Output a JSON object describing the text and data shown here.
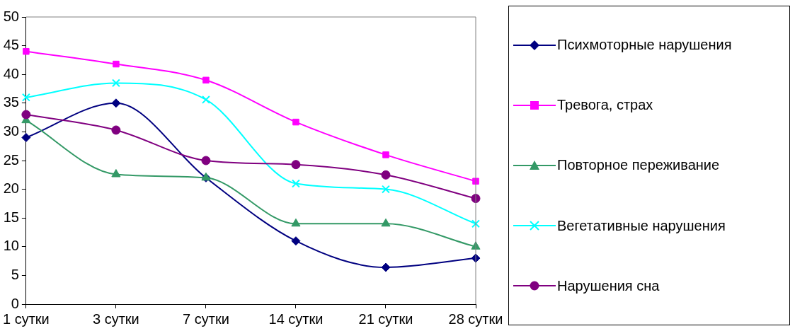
{
  "chart_data": {
    "type": "line",
    "categories": [
      "1 сутки",
      "3 сутки",
      "7 сутки",
      "14 сутки",
      "21 сутки",
      "28 сутки"
    ],
    "ylim": [
      0,
      50
    ],
    "yticks": [
      0,
      5,
      10,
      15,
      20,
      25,
      30,
      35,
      40,
      45,
      50
    ],
    "grid": false,
    "legend": "right",
    "series": [
      {
        "name": "Психмоторные нарушения",
        "color": "#000080",
        "marker": "diamond",
        "values": [
          29,
          35,
          22,
          11,
          6.4,
          8
        ]
      },
      {
        "name": "Тревога, страх",
        "color": "#ff00ff",
        "marker": "square",
        "values": [
          44,
          41.8,
          39,
          31.7,
          26,
          21.4
        ]
      },
      {
        "name": "Повторное переживание",
        "color": "#339966",
        "marker": "triangle",
        "values": [
          32,
          22.6,
          22,
          14,
          14,
          10
        ]
      },
      {
        "name": "Вегетативные нарушения",
        "color": "#00ffff",
        "marker": "cross",
        "values": [
          36,
          38.5,
          35.6,
          21,
          20,
          14
        ]
      },
      {
        "name": "Нарушения сна",
        "color": "#800080",
        "marker": "circle",
        "values": [
          33,
          30.3,
          25,
          24.3,
          22.5,
          18.4
        ]
      }
    ]
  }
}
